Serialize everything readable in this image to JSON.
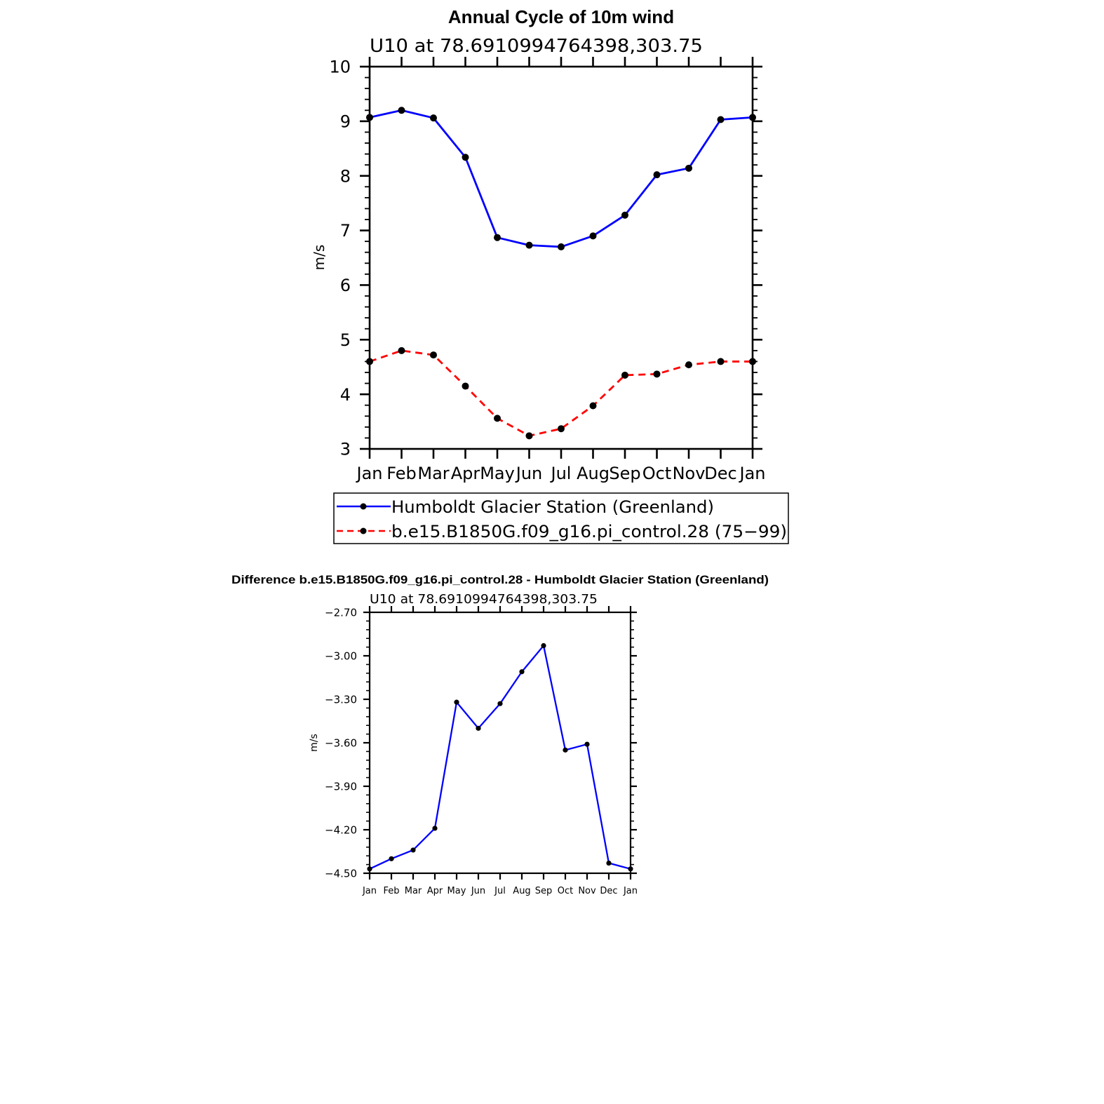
{
  "chart_data": [
    {
      "type": "line",
      "title": "Annual Cycle of 10m wind",
      "subtitle": "U10 at 78.6910994764398,303.75",
      "ylabel": "m/s",
      "xlabel": "",
      "categories": [
        "Jan",
        "Feb",
        "Mar",
        "Apr",
        "May",
        "Jun",
        "Jul",
        "Aug",
        "Sep",
        "Oct",
        "Nov",
        "Dec",
        "Jan"
      ],
      "ylim": [
        3,
        10
      ],
      "yticks": [
        "3",
        "4",
        "5",
        "6",
        "7",
        "8",
        "9",
        "10"
      ],
      "legend_position": "below",
      "series": [
        {
          "name": "Humboldt Glacier Station (Greenland)",
          "color": "#0000ff",
          "dash": "solid",
          "values": [
            9.07,
            9.2,
            9.06,
            8.34,
            6.87,
            6.73,
            6.7,
            6.9,
            7.28,
            8.02,
            8.14,
            9.03,
            9.07
          ]
        },
        {
          "name": "b.e15.B1850G.f09_g16.pi_control.28 (75−99)",
          "color": "#ff0000",
          "dash": "dashed",
          "values": [
            4.6,
            4.8,
            4.72,
            4.15,
            3.56,
            3.24,
            3.37,
            3.79,
            4.35,
            4.37,
            4.54,
            4.6,
            4.6
          ]
        }
      ]
    },
    {
      "type": "line",
      "title": "Difference b.e15.B1850G.f09_g16.pi_control.28 - Humboldt Glacier Station (Greenland)",
      "subtitle": "U10 at 78.6910994764398,303.75",
      "ylabel": "m/s",
      "xlabel": "",
      "categories": [
        "Jan",
        "Feb",
        "Mar",
        "Apr",
        "May",
        "Jun",
        "Jul",
        "Aug",
        "Sep",
        "Oct",
        "Nov",
        "Dec",
        "Jan"
      ],
      "ylim": [
        -4.5,
        -2.7
      ],
      "yticks": [
        "−4.50",
        "−4.20",
        "−3.90",
        "−3.60",
        "−3.30",
        "−3.00",
        "−2.70"
      ],
      "series": [
        {
          "color": "#0000ff",
          "dash": "solid",
          "values": [
            -4.47,
            -4.4,
            -4.34,
            -4.19,
            -3.32,
            -3.5,
            -3.33,
            -3.11,
            -2.93,
            -3.65,
            -3.61,
            -4.43,
            -4.47
          ]
        }
      ]
    }
  ]
}
